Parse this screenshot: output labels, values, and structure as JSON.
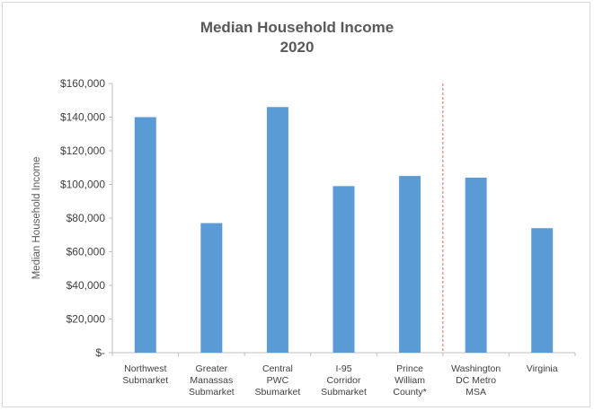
{
  "chart_data": {
    "type": "bar",
    "title": "Median Household Income",
    "subtitle": "2020",
    "xlabel": "",
    "ylabel": "Median Household Income",
    "ylim": [
      0,
      160000
    ],
    "y_ticks": [
      0,
      20000,
      40000,
      60000,
      80000,
      100000,
      120000,
      140000,
      160000
    ],
    "y_tick_labels": [
      "$-",
      "$20,000",
      "$40,000",
      "$60,000",
      "$80,000",
      "$100,000",
      "$120,000",
      "$140,000",
      "$160,000"
    ],
    "grid": false,
    "legend": "none",
    "bar_color": "#5b9bd5",
    "divider_color": "#e06666",
    "categories": [
      "Northwest\nSubmarket",
      "Greater\nManassas\nSubmarket",
      "Central\nPWC\nSbumarket",
      "I-95\nCorridor\nSubmarket",
      "Prince\nWilliam\nCounty*",
      "Washington\nDC Metro\nMSA",
      "Virginia"
    ],
    "values": [
      140000,
      77000,
      146000,
      99000,
      105000,
      104000,
      74000
    ]
  }
}
